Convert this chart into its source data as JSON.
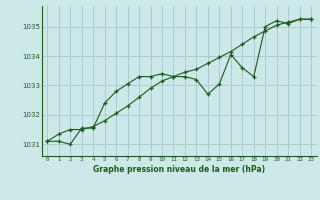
{
  "title": "Graphe pression niveau de la mer (hPa)",
  "bg_color": "#cce8e8",
  "grid_color": "#aacccc",
  "line_color": "#1a5c1a",
  "xlim": [
    -0.5,
    23.5
  ],
  "ylim": [
    1030.6,
    1035.7
  ],
  "yticks": [
    1031,
    1032,
    1033,
    1034,
    1035
  ],
  "xticks": [
    0,
    1,
    2,
    3,
    4,
    5,
    6,
    7,
    8,
    9,
    10,
    11,
    12,
    13,
    14,
    15,
    16,
    17,
    18,
    19,
    20,
    21,
    22,
    23
  ],
  "series1_x": [
    0,
    1,
    2,
    3,
    4,
    5,
    6,
    7,
    8,
    9,
    10,
    11,
    12,
    13,
    14,
    15,
    16,
    17,
    18,
    19,
    20,
    21,
    22,
    23
  ],
  "series1_y": [
    1031.1,
    1031.1,
    1031.0,
    1031.55,
    1031.55,
    1032.4,
    1032.8,
    1033.05,
    1033.3,
    1033.3,
    1033.4,
    1033.3,
    1033.3,
    1033.2,
    1032.7,
    1033.05,
    1034.05,
    1033.6,
    1033.3,
    1035.0,
    1035.2,
    1035.1,
    1035.25,
    1035.25
  ],
  "series2_x": [
    0,
    1,
    2,
    3,
    4,
    5,
    6,
    7,
    8,
    9,
    10,
    11,
    12,
    13,
    14,
    15,
    16,
    17,
    18,
    19,
    20,
    21,
    22,
    23
  ],
  "series2_y": [
    1031.1,
    1031.35,
    1031.5,
    1031.5,
    1031.6,
    1031.8,
    1032.05,
    1032.3,
    1032.6,
    1032.9,
    1033.15,
    1033.3,
    1033.45,
    1033.55,
    1033.75,
    1033.95,
    1034.15,
    1034.4,
    1034.65,
    1034.85,
    1035.05,
    1035.15,
    1035.25,
    1035.25
  ]
}
